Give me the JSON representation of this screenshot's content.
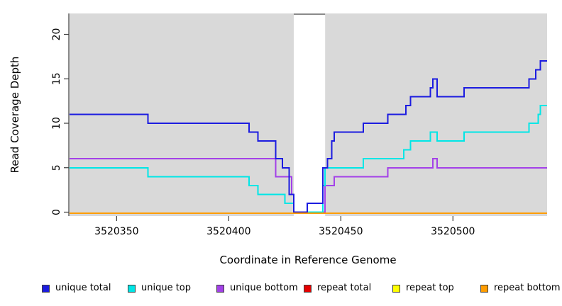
{
  "figure": {
    "type_note": "read coverage depth step plot"
  },
  "chart_data": {
    "type": "line",
    "subtype": "step-after",
    "title": "",
    "xlabel": "Coordinate in Reference Genome",
    "ylabel": "Read Coverage Depth",
    "xlim": [
      3520329,
      3520542
    ],
    "ylim": [
      0,
      22
    ],
    "x_ticks": [
      3520350,
      3520400,
      3520450,
      3520500
    ],
    "y_ticks": [
      0,
      5,
      10,
      15,
      20
    ],
    "grid": false,
    "plot_bg": "#d9d9d9",
    "gap_region": {
      "x_start": 3520429,
      "x_end": 3520443,
      "fill": "#ffffff",
      "top_border": "#8a8a8a"
    },
    "legend_position": "bottom",
    "series": [
      {
        "name": "unique total",
        "color": "#1c1ce0",
        "points": [
          [
            3520329,
            11
          ],
          [
            3520364,
            10
          ],
          [
            3520409,
            9
          ],
          [
            3520413,
            8
          ],
          [
            3520421,
            6
          ],
          [
            3520424,
            5
          ],
          [
            3520427,
            2
          ],
          [
            3520429,
            0
          ],
          [
            3520435,
            1
          ],
          [
            3520442,
            5
          ],
          [
            3520444,
            6
          ],
          [
            3520446,
            8
          ],
          [
            3520447,
            9
          ],
          [
            3520460,
            10
          ],
          [
            3520471,
            11
          ],
          [
            3520479,
            12
          ],
          [
            3520481,
            13
          ],
          [
            3520490,
            14
          ],
          [
            3520491,
            15
          ],
          [
            3520493,
            13
          ],
          [
            3520505,
            14
          ],
          [
            3520534,
            15
          ],
          [
            3520537,
            16
          ],
          [
            3520539,
            17
          ]
        ]
      },
      {
        "name": "unique top",
        "color": "#00e6e6",
        "points": [
          [
            3520329,
            5
          ],
          [
            3520364,
            4
          ],
          [
            3520409,
            3
          ],
          [
            3520413,
            2
          ],
          [
            3520425,
            1
          ],
          [
            3520429,
            0
          ],
          [
            3520442,
            3
          ],
          [
            3520443,
            5
          ],
          [
            3520460,
            6
          ],
          [
            3520478,
            7
          ],
          [
            3520481,
            8
          ],
          [
            3520490,
            9
          ],
          [
            3520493,
            8
          ],
          [
            3520505,
            9
          ],
          [
            3520534,
            10
          ],
          [
            3520538,
            11
          ],
          [
            3520539,
            12
          ]
        ]
      },
      {
        "name": "unique bottom",
        "color": "#a341e8",
        "points": [
          [
            3520329,
            6
          ],
          [
            3520421,
            4
          ],
          [
            3520428,
            2
          ],
          [
            3520429,
            0
          ],
          [
            3520443,
            3
          ],
          [
            3520447,
            4
          ],
          [
            3520471,
            5
          ],
          [
            3520491,
            6
          ],
          [
            3520493,
            5
          ]
        ]
      },
      {
        "name": "repeat total",
        "color": "#e60000",
        "points": [
          [
            3520329,
            0
          ]
        ]
      },
      {
        "name": "repeat top",
        "color": "#ffff00",
        "points": [
          [
            3520329,
            0
          ]
        ]
      },
      {
        "name": "repeat bottom",
        "color": "#ff9d00",
        "points": [
          [
            3520329,
            0
          ]
        ]
      }
    ]
  }
}
